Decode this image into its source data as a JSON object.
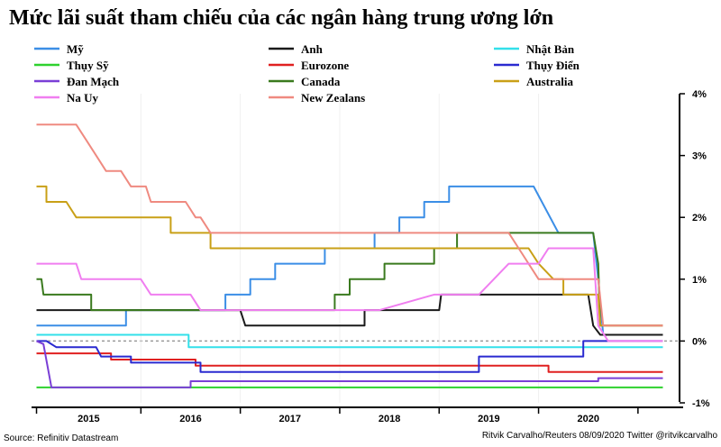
{
  "chart_data": {
    "type": "line",
    "title": "Mức lãi suất tham chiếu của các ngân hàng trung ương lớn",
    "y_ticks": [
      "4%",
      "3%",
      "2%",
      "1%",
      "0%",
      "-1%"
    ],
    "ylim": [
      -1,
      4
    ],
    "x_ticks": [
      "2015",
      "2016",
      "2017",
      "2018",
      "2019",
      "2020"
    ],
    "xlim": [
      2014.5,
      2021.0
    ],
    "source": "Source: Refinitiv Datastream",
    "credit": "Ritvik Carvalho/Reuters 08/09/2020 Twitter @ritvikcarvalho",
    "series": [
      {
        "name": "Mỹ",
        "color": "#3b8ee6",
        "points": [
          [
            2014.55,
            0.25
          ],
          [
            2015.45,
            0.25
          ],
          [
            2015.45,
            0.5
          ],
          [
            2016.45,
            0.5
          ],
          [
            2016.45,
            0.75
          ],
          [
            2016.7,
            0.75
          ],
          [
            2016.7,
            1.0
          ],
          [
            2016.95,
            1.0
          ],
          [
            2016.95,
            1.25
          ],
          [
            2017.45,
            1.25
          ],
          [
            2017.45,
            1.5
          ],
          [
            2017.95,
            1.5
          ],
          [
            2017.95,
            1.75
          ],
          [
            2018.2,
            1.75
          ],
          [
            2018.2,
            2.0
          ],
          [
            2018.45,
            2.0
          ],
          [
            2018.45,
            2.25
          ],
          [
            2018.7,
            2.25
          ],
          [
            2018.7,
            2.5
          ],
          [
            2019.55,
            2.5
          ],
          [
            2019.8,
            1.75
          ],
          [
            2019.85,
            1.75
          ],
          [
            2020.15,
            1.75
          ],
          [
            2020.2,
            1.0
          ],
          [
            2020.25,
            0.1
          ],
          [
            2020.85,
            0.1
          ]
        ]
      },
      {
        "name": "Anh",
        "color": "#1a1a1a",
        "points": [
          [
            2014.55,
            0.5
          ],
          [
            2016.6,
            0.5
          ],
          [
            2016.65,
            0.25
          ],
          [
            2017.85,
            0.25
          ],
          [
            2017.85,
            0.5
          ],
          [
            2018.6,
            0.5
          ],
          [
            2018.62,
            0.75
          ],
          [
            2020.1,
            0.75
          ],
          [
            2020.15,
            0.25
          ],
          [
            2020.22,
            0.1
          ],
          [
            2020.85,
            0.1
          ]
        ]
      },
      {
        "name": "Nhật Bản",
        "color": "#33e0ea",
        "points": [
          [
            2014.55,
            0.1
          ],
          [
            2016.08,
            0.1
          ],
          [
            2016.08,
            -0.1
          ],
          [
            2020.85,
            -0.1
          ]
        ]
      },
      {
        "name": "Thụy Sỹ",
        "color": "#2ed12e",
        "points": [
          [
            2014.55,
            -0.75
          ],
          [
            2020.85,
            -0.75
          ]
        ]
      },
      {
        "name": "Eurozone",
        "color": "#e02020",
        "points": [
          [
            2014.55,
            -0.2
          ],
          [
            2015.3,
            -0.2
          ],
          [
            2015.3,
            -0.3
          ],
          [
            2016.15,
            -0.3
          ],
          [
            2016.15,
            -0.4
          ],
          [
            2019.7,
            -0.4
          ],
          [
            2019.7,
            -0.5
          ],
          [
            2020.85,
            -0.5
          ]
        ]
      },
      {
        "name": "Thụy Điển",
        "color": "#2a2ad0",
        "points": [
          [
            2014.55,
            0.0
          ],
          [
            2014.65,
            0.0
          ],
          [
            2014.75,
            -0.1
          ],
          [
            2015.15,
            -0.1
          ],
          [
            2015.2,
            -0.25
          ],
          [
            2015.5,
            -0.25
          ],
          [
            2015.5,
            -0.35
          ],
          [
            2016.2,
            -0.35
          ],
          [
            2016.2,
            -0.5
          ],
          [
            2019.0,
            -0.5
          ],
          [
            2019.0,
            -0.25
          ],
          [
            2020.05,
            -0.25
          ],
          [
            2020.05,
            0.0
          ],
          [
            2020.85,
            0.0
          ]
        ]
      },
      {
        "name": "Đan Mạch",
        "color": "#7a3fd6",
        "points": [
          [
            2014.55,
            0.0
          ],
          [
            2014.62,
            -0.05
          ],
          [
            2014.7,
            -0.75
          ],
          [
            2016.1,
            -0.75
          ],
          [
            2016.1,
            -0.65
          ],
          [
            2020.2,
            -0.65
          ],
          [
            2020.2,
            -0.6
          ],
          [
            2020.85,
            -0.6
          ]
        ]
      },
      {
        "name": "Canada",
        "color": "#3a7a1e",
        "points": [
          [
            2014.55,
            1.0
          ],
          [
            2014.6,
            1.0
          ],
          [
            2014.62,
            0.75
          ],
          [
            2015.1,
            0.75
          ],
          [
            2015.1,
            0.5
          ],
          [
            2017.55,
            0.5
          ],
          [
            2017.55,
            0.75
          ],
          [
            2017.7,
            0.75
          ],
          [
            2017.7,
            1.0
          ],
          [
            2018.05,
            1.0
          ],
          [
            2018.05,
            1.25
          ],
          [
            2018.55,
            1.25
          ],
          [
            2018.55,
            1.5
          ],
          [
            2018.78,
            1.5
          ],
          [
            2018.78,
            1.75
          ],
          [
            2020.15,
            1.75
          ],
          [
            2020.2,
            1.25
          ],
          [
            2020.22,
            0.25
          ],
          [
            2020.85,
            0.25
          ]
        ]
      },
      {
        "name": "Australia",
        "color": "#c9a017",
        "points": [
          [
            2014.55,
            2.5
          ],
          [
            2014.65,
            2.5
          ],
          [
            2014.65,
            2.25
          ],
          [
            2014.85,
            2.25
          ],
          [
            2014.95,
            2.0
          ],
          [
            2015.9,
            2.0
          ],
          [
            2015.9,
            1.75
          ],
          [
            2016.3,
            1.75
          ],
          [
            2016.3,
            1.5
          ],
          [
            2019.5,
            1.5
          ],
          [
            2019.6,
            1.25
          ],
          [
            2019.75,
            1.0
          ],
          [
            2019.85,
            1.0
          ],
          [
            2019.85,
            0.75
          ],
          [
            2020.2,
            0.75
          ],
          [
            2020.22,
            0.25
          ],
          [
            2020.85,
            0.25
          ]
        ]
      },
      {
        "name": "New Zealans",
        "color": "#ef8a80",
        "points": [
          [
            2014.55,
            3.5
          ],
          [
            2014.95,
            3.5
          ],
          [
            2015.05,
            3.25
          ],
          [
            2015.15,
            3.0
          ],
          [
            2015.25,
            2.75
          ],
          [
            2015.4,
            2.75
          ],
          [
            2015.5,
            2.5
          ],
          [
            2015.65,
            2.5
          ],
          [
            2015.7,
            2.25
          ],
          [
            2015.85,
            2.25
          ],
          [
            2015.9,
            2.25
          ],
          [
            2016.05,
            2.25
          ],
          [
            2016.15,
            2.0
          ],
          [
            2016.2,
            2.0
          ],
          [
            2016.3,
            1.75
          ],
          [
            2019.3,
            1.75
          ],
          [
            2019.4,
            1.5
          ],
          [
            2019.6,
            1.0
          ],
          [
            2020.2,
            1.0
          ],
          [
            2020.25,
            0.25
          ],
          [
            2020.85,
            0.25
          ]
        ]
      },
      {
        "name": "Na Uy",
        "color": "#f07ef0",
        "points": [
          [
            2014.55,
            1.25
          ],
          [
            2014.95,
            1.25
          ],
          [
            2015.0,
            1.0
          ],
          [
            2015.6,
            1.0
          ],
          [
            2015.7,
            0.75
          ],
          [
            2016.1,
            0.75
          ],
          [
            2016.2,
            0.5
          ],
          [
            2018.0,
            0.5
          ],
          [
            2018.55,
            0.75
          ],
          [
            2019.0,
            0.75
          ],
          [
            2019.15,
            1.0
          ],
          [
            2019.3,
            1.25
          ],
          [
            2019.6,
            1.25
          ],
          [
            2019.7,
            1.5
          ],
          [
            2020.15,
            1.5
          ],
          [
            2020.2,
            0.25
          ],
          [
            2020.3,
            0.0
          ],
          [
            2020.85,
            0.0
          ]
        ]
      }
    ]
  },
  "legend_columns": [
    [
      "Mỹ",
      "Thụy Sỹ",
      "Đan Mạch",
      "Na Uy"
    ],
    [
      "Anh",
      "Eurozone",
      "Canada",
      "New Zealans"
    ],
    [
      "Nhật Bản",
      "Thụy Điển",
      "Australia"
    ]
  ]
}
